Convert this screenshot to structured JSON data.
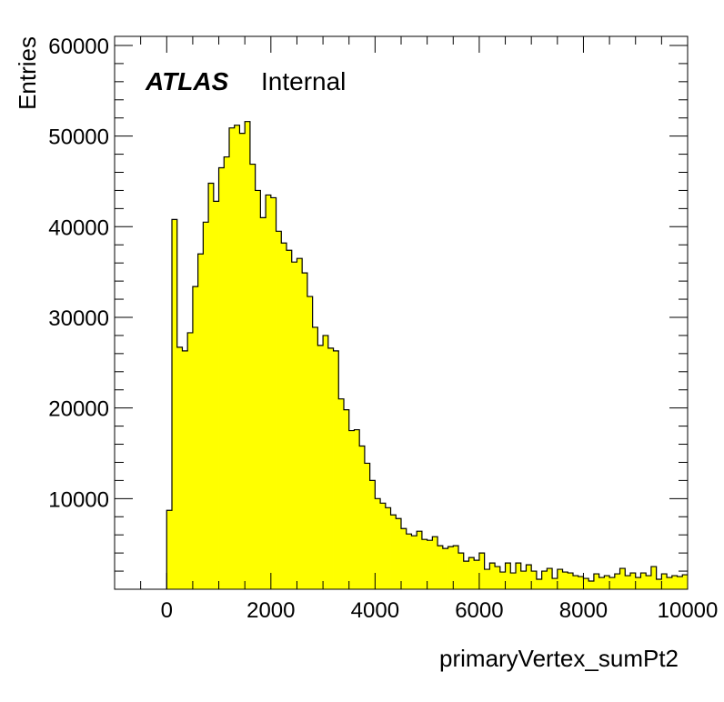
{
  "chart_data": {
    "type": "bar",
    "style": "filled-step-histogram",
    "fill_color": "#ffff00",
    "line_color": "#000000",
    "xlabel": "primaryVertex_sumPt2",
    "ylabel": "Entries",
    "xlim": [
      -1000,
      10000
    ],
    "ylim": [
      0,
      61000
    ],
    "x_ticks": [
      0,
      2000,
      4000,
      6000,
      8000,
      10000
    ],
    "x_tick_labels": [
      "0",
      "2000",
      "4000",
      "6000",
      "8000",
      "10000"
    ],
    "y_ticks": [
      10000,
      20000,
      30000,
      40000,
      50000,
      60000
    ],
    "y_tick_labels": [
      "10000",
      "20000",
      "30000",
      "40000",
      "50000",
      "60000"
    ],
    "grid": false,
    "bin_start": 0,
    "bin_width": 100,
    "values": [
      8700,
      40800,
      26700,
      26300,
      28300,
      33400,
      37000,
      40500,
      44800,
      42800,
      46500,
      47700,
      50900,
      51200,
      50300,
      51600,
      46900,
      44000,
      41000,
      43500,
      43200,
      39500,
      38200,
      37400,
      36100,
      36500,
      34900,
      32300,
      28900,
      26900,
      28000,
      26600,
      26300,
      21000,
      19800,
      17500,
      17600,
      15800,
      13900,
      12000,
      10000,
      9500,
      9000,
      8200,
      7800,
      6700,
      6100,
      5900,
      6400,
      5500,
      5400,
      5800,
      4800,
      4500,
      4700,
      4800,
      4000,
      3100,
      3500,
      3200,
      4000,
      2200,
      2900,
      2500,
      1900,
      2900,
      1800,
      2900,
      2000,
      2700,
      2000,
      1100,
      2000,
      2300,
      1200,
      2200,
      1900,
      1800,
      1500,
      1400,
      1200,
      900,
      1700,
      1300,
      1500,
      1300,
      1700,
      2300,
      1500,
      1800,
      1300,
      1800,
      1500,
      2500,
      1100,
      1700,
      1300,
      1500,
      1400,
      1600
    ]
  },
  "annotation": {
    "atlas": "ATLAS",
    "internal": "Internal"
  }
}
